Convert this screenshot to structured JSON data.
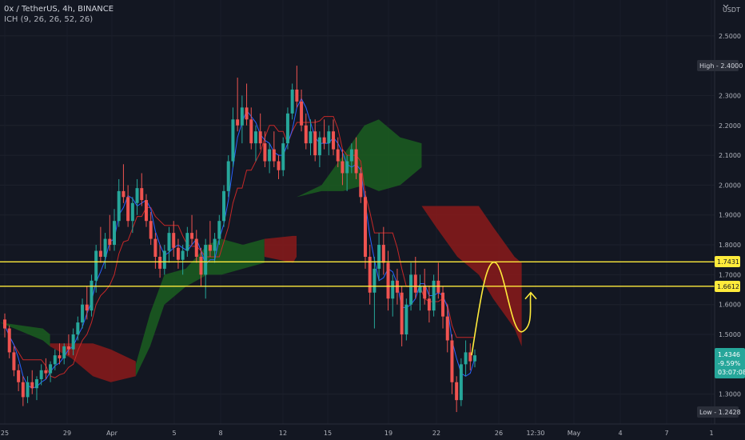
{
  "header": {
    "symbol_line": "0x / TetherUS, 4h, BINANCE",
    "indicator_line": "ICH (9, 26, 26, 52, 26)"
  },
  "colors": {
    "background": "#131722",
    "up_candle": "#26a69a",
    "down_candle": "#ef5350",
    "cloud_bull": "#1b5e20",
    "cloud_bear": "#8b1a1a",
    "conversion_line": "#2962ff",
    "base_line": "#c62828",
    "level_line": "#ffeb3b",
    "projection": "#ffeb3b"
  },
  "icons": {
    "currency_selector": "chevron-down-icon"
  },
  "chart_data": {
    "type": "candlestick",
    "currency_label": "USDT",
    "price_ticks": [
      "2.5000",
      "2.3000",
      "2.2000",
      "2.1000",
      "2.0000",
      "1.9000",
      "1.8000",
      "1.7000",
      "1.6000",
      "1.5000",
      "1.3000"
    ],
    "date_ticks": [
      "25",
      "29",
      "Apr",
      "5",
      "8",
      "12",
      "15",
      "19",
      "22",
      "26",
      "12:30",
      "May",
      "4",
      "7",
      "1"
    ],
    "ylim": [
      1.2,
      2.62
    ],
    "badges": {
      "high": "High - 2.4000",
      "level_upper": "1.7431",
      "level_lower": "1.6612",
      "current_price": "1.4346",
      "current_change": "-9.59%",
      "countdown": "03:07:08",
      "low": "Low - 1.2428"
    },
    "levels": [
      1.7431,
      1.6612
    ],
    "high": 2.4,
    "low": 1.2428,
    "current": 1.4346,
    "candles": [
      [
        1.55,
        1.57,
        1.49,
        1.52
      ],
      [
        1.52,
        1.53,
        1.42,
        1.44
      ],
      [
        1.44,
        1.46,
        1.36,
        1.38
      ],
      [
        1.38,
        1.4,
        1.31,
        1.34
      ],
      [
        1.34,
        1.36,
        1.26,
        1.29
      ],
      [
        1.29,
        1.36,
        1.27,
        1.34
      ],
      [
        1.34,
        1.38,
        1.3,
        1.32
      ],
      [
        1.32,
        1.36,
        1.28,
        1.35
      ],
      [
        1.35,
        1.4,
        1.33,
        1.38
      ],
      [
        1.38,
        1.42,
        1.35,
        1.37
      ],
      [
        1.37,
        1.41,
        1.34,
        1.4
      ],
      [
        1.4,
        1.45,
        1.38,
        1.43
      ],
      [
        1.43,
        1.47,
        1.4,
        1.42
      ],
      [
        1.42,
        1.47,
        1.4,
        1.46
      ],
      [
        1.46,
        1.5,
        1.43,
        1.45
      ],
      [
        1.45,
        1.52,
        1.43,
        1.5
      ],
      [
        1.5,
        1.56,
        1.48,
        1.54
      ],
      [
        1.54,
        1.62,
        1.52,
        1.6
      ],
      [
        1.6,
        1.66,
        1.55,
        1.58
      ],
      [
        1.58,
        1.7,
        1.56,
        1.68
      ],
      [
        1.68,
        1.8,
        1.64,
        1.78
      ],
      [
        1.78,
        1.86,
        1.74,
        1.76
      ],
      [
        1.76,
        1.84,
        1.72,
        1.82
      ],
      [
        1.82,
        1.9,
        1.78,
        1.8
      ],
      [
        1.8,
        1.92,
        1.78,
        1.88
      ],
      [
        1.88,
        2.02,
        1.86,
        1.98
      ],
      [
        1.98,
        2.07,
        1.94,
        1.96
      ],
      [
        1.96,
        2.0,
        1.86,
        1.88
      ],
      [
        1.88,
        1.96,
        1.84,
        1.94
      ],
      [
        1.94,
        2.02,
        1.9,
        1.99
      ],
      [
        1.99,
        2.04,
        1.93,
        1.95
      ],
      [
        1.95,
        1.97,
        1.86,
        1.88
      ],
      [
        1.88,
        1.91,
        1.8,
        1.82
      ],
      [
        1.82,
        1.84,
        1.72,
        1.76
      ],
      [
        1.76,
        1.8,
        1.69,
        1.72
      ],
      [
        1.72,
        1.8,
        1.7,
        1.78
      ],
      [
        1.78,
        1.86,
        1.74,
        1.84
      ],
      [
        1.84,
        1.88,
        1.76,
        1.79
      ],
      [
        1.79,
        1.82,
        1.72,
        1.75
      ],
      [
        1.75,
        1.8,
        1.7,
        1.78
      ],
      [
        1.78,
        1.86,
        1.76,
        1.84
      ],
      [
        1.84,
        1.9,
        1.8,
        1.82
      ],
      [
        1.82,
        1.85,
        1.74,
        1.76
      ],
      [
        1.76,
        1.79,
        1.66,
        1.7
      ],
      [
        1.7,
        1.82,
        1.62,
        1.8
      ],
      [
        1.8,
        1.88,
        1.76,
        1.78
      ],
      [
        1.78,
        1.84,
        1.74,
        1.82
      ],
      [
        1.82,
        1.9,
        1.8,
        1.88
      ],
      [
        1.88,
        2.0,
        1.86,
        1.98
      ],
      [
        1.98,
        2.1,
        1.96,
        2.08
      ],
      [
        2.08,
        2.26,
        2.06,
        2.22
      ],
      [
        2.22,
        2.36,
        2.18,
        2.2
      ],
      [
        2.2,
        2.3,
        2.14,
        2.26
      ],
      [
        2.26,
        2.34,
        2.2,
        2.22
      ],
      [
        2.22,
        2.26,
        2.12,
        2.14
      ],
      [
        2.14,
        2.2,
        2.08,
        2.18
      ],
      [
        2.18,
        2.24,
        2.12,
        2.14
      ],
      [
        2.14,
        2.18,
        2.06,
        2.08
      ],
      [
        2.08,
        2.14,
        2.04,
        2.12
      ],
      [
        2.12,
        2.18,
        2.06,
        2.08
      ],
      [
        2.08,
        2.1,
        2.02,
        2.05
      ],
      [
        2.05,
        2.16,
        2.03,
        2.14
      ],
      [
        2.14,
        2.26,
        2.12,
        2.24
      ],
      [
        2.24,
        2.34,
        2.22,
        2.32
      ],
      [
        2.32,
        2.4,
        2.26,
        2.28
      ],
      [
        2.28,
        2.32,
        2.18,
        2.2
      ],
      [
        2.2,
        2.24,
        2.12,
        2.14
      ],
      [
        2.14,
        2.22,
        2.1,
        2.18
      ],
      [
        2.18,
        2.22,
        2.08,
        2.1
      ],
      [
        2.1,
        2.18,
        2.06,
        2.16
      ],
      [
        2.16,
        2.22,
        2.12,
        2.14
      ],
      [
        2.14,
        2.2,
        2.1,
        2.18
      ],
      [
        2.18,
        2.22,
        2.1,
        2.12
      ],
      [
        2.12,
        2.16,
        2.06,
        2.08
      ],
      [
        2.08,
        2.12,
        2.0,
        2.04
      ],
      [
        2.04,
        2.1,
        1.98,
        2.08
      ],
      [
        2.08,
        2.14,
        2.04,
        2.12
      ],
      [
        2.12,
        2.16,
        2.02,
        2.04
      ],
      [
        2.04,
        2.06,
        1.94,
        1.96
      ],
      [
        1.96,
        1.98,
        1.72,
        1.76
      ],
      [
        1.76,
        1.8,
        1.6,
        1.64
      ],
      [
        1.64,
        1.76,
        1.52,
        1.72
      ],
      [
        1.72,
        1.84,
        1.68,
        1.8
      ],
      [
        1.8,
        1.86,
        1.7,
        1.74
      ],
      [
        1.74,
        1.78,
        1.58,
        1.62
      ],
      [
        1.62,
        1.7,
        1.56,
        1.68
      ],
      [
        1.68,
        1.72,
        1.6,
        1.64
      ],
      [
        1.64,
        1.66,
        1.46,
        1.5
      ],
      [
        1.5,
        1.62,
        1.48,
        1.6
      ],
      [
        1.6,
        1.74,
        1.58,
        1.7
      ],
      [
        1.7,
        1.76,
        1.62,
        1.64
      ],
      [
        1.64,
        1.7,
        1.58,
        1.66
      ],
      [
        1.66,
        1.72,
        1.6,
        1.62
      ],
      [
        1.62,
        1.66,
        1.54,
        1.58
      ],
      [
        1.58,
        1.7,
        1.56,
        1.68
      ],
      [
        1.68,
        1.74,
        1.62,
        1.64
      ],
      [
        1.64,
        1.66,
        1.52,
        1.56
      ],
      [
        1.56,
        1.6,
        1.44,
        1.48
      ],
      [
        1.48,
        1.5,
        1.3,
        1.34
      ],
      [
        1.34,
        1.36,
        1.24,
        1.28
      ],
      [
        1.28,
        1.42,
        1.26,
        1.4
      ],
      [
        1.4,
        1.48,
        1.36,
        1.44
      ],
      [
        1.44,
        1.47,
        1.38,
        1.41
      ],
      [
        1.41,
        1.45,
        1.39,
        1.43
      ]
    ],
    "cloud": [
      {
        "tone": "bull",
        "points": [
          [
            0,
            1.54,
            1.54
          ],
          [
            0.06,
            1.52,
            1.48
          ],
          [
            0.07,
            1.5,
            1.46
          ]
        ]
      },
      {
        "tone": "bear",
        "points": [
          [
            0.07,
            1.47,
            1.46
          ],
          [
            0.1,
            1.47,
            1.42
          ],
          [
            0.13,
            1.47,
            1.36
          ],
          [
            0.155,
            1.45,
            1.34
          ],
          [
            0.19,
            1.41,
            1.36
          ]
        ]
      },
      {
        "tone": "bull",
        "points": [
          [
            0.19,
            1.4,
            1.36
          ],
          [
            0.21,
            1.57,
            1.46
          ],
          [
            0.23,
            1.7,
            1.6
          ],
          [
            0.26,
            1.72,
            1.66
          ],
          [
            0.29,
            1.8,
            1.7
          ],
          [
            0.31,
            1.82,
            1.7
          ],
          [
            0.34,
            1.8,
            1.72
          ],
          [
            0.37,
            1.82,
            1.74
          ]
        ]
      },
      {
        "tone": "bear",
        "points": [
          [
            0.37,
            1.82,
            1.76
          ],
          [
            0.41,
            1.83,
            1.74
          ],
          [
            0.415,
            1.83,
            1.76
          ]
        ]
      },
      {
        "tone": "bull",
        "points": [
          [
            0.415,
            1.96,
            1.96
          ],
          [
            0.45,
            2.0,
            1.98
          ],
          [
            0.48,
            2.1,
            1.98
          ],
          [
            0.51,
            2.2,
            2.0
          ],
          [
            0.53,
            2.22,
            1.98
          ],
          [
            0.56,
            2.16,
            2.0
          ],
          [
            0.59,
            2.14,
            2.06
          ]
        ]
      },
      {
        "tone": "bear",
        "points": [
          [
            0.59,
            1.93,
            1.93
          ],
          [
            0.61,
            1.93,
            1.86
          ],
          [
            0.64,
            1.93,
            1.76
          ],
          [
            0.67,
            1.93,
            1.7
          ],
          [
            0.69,
            1.86,
            1.62
          ],
          [
            0.72,
            1.76,
            1.52
          ],
          [
            0.73,
            1.74,
            1.46
          ]
        ]
      }
    ]
  }
}
